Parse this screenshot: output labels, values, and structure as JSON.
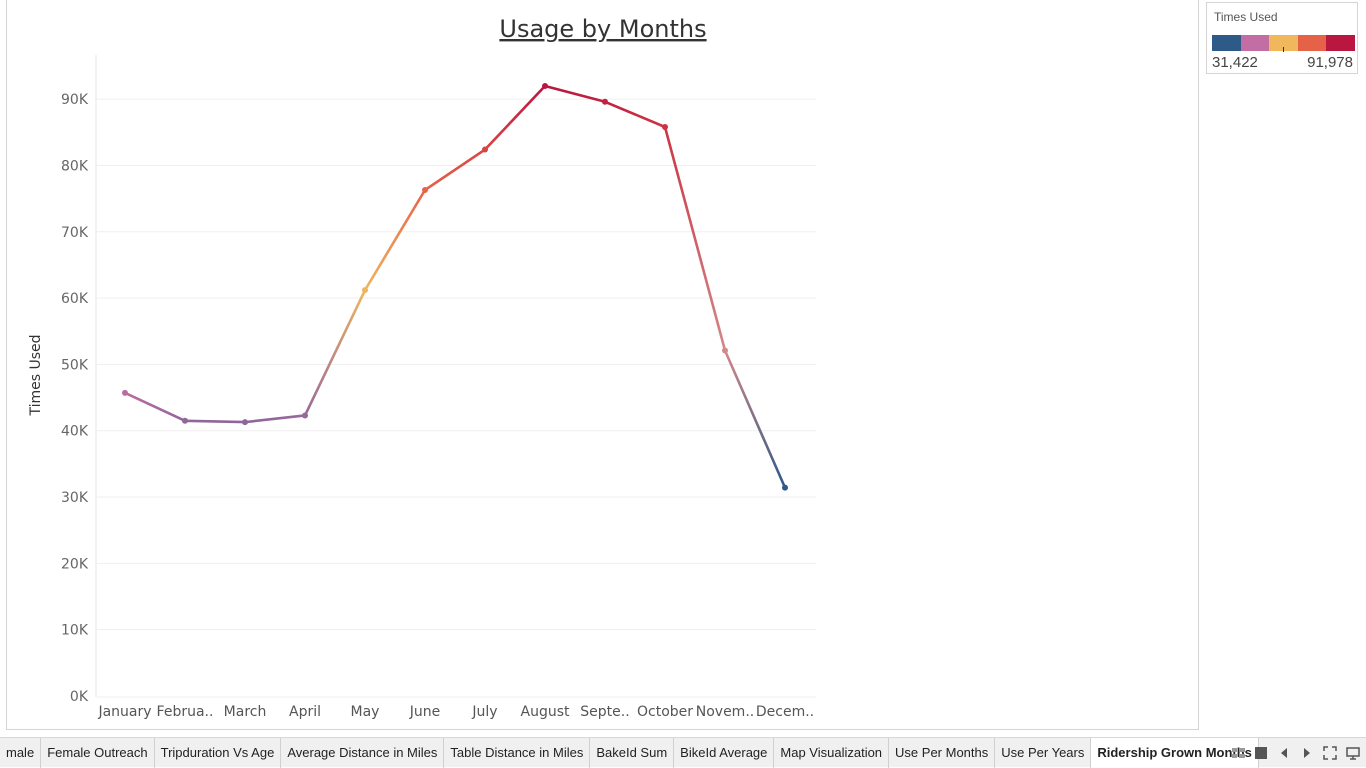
{
  "chart_data": {
    "type": "line",
    "title": "Usage by Months",
    "ylabel": "Times Used",
    "xlabel": "",
    "categories": [
      "January",
      "Februa..",
      "March",
      "April",
      "May",
      "June",
      "July",
      "August",
      "Septe..",
      "October",
      "Novem..",
      "Decem.."
    ],
    "series": [
      {
        "values": [
          45700,
          41500,
          41300,
          42300,
          61200,
          76300,
          82400,
          91978,
          89600,
          85800,
          52100,
          31422
        ]
      }
    ],
    "ylim": [
      0,
      96000
    ],
    "yticks": [
      0,
      10000,
      20000,
      30000,
      40000,
      50000,
      60000,
      70000,
      80000,
      90000
    ],
    "ytick_labels": [
      "0K",
      "10K",
      "20K",
      "30K",
      "40K",
      "50K",
      "60K",
      "70K",
      "80K",
      "90K"
    ],
    "grid": "horizontal",
    "color_legend": {
      "title": "Times Used",
      "min": 31422,
      "max": 91978,
      "min_label": "31,422",
      "max_label": "91,978",
      "colors": [
        "#2e5a87",
        "#c26da3",
        "#f1b75c",
        "#e56148",
        "#b9173f"
      ]
    }
  },
  "tabs": {
    "items": [
      "male",
      "Female Outreach",
      "Tripduration Vs Age",
      "Average Distance in Miles",
      "Table Distance in Miles",
      "BakeId Sum",
      "BikeId Average",
      "Map Visualization",
      "Use Per Months",
      "Use Per Years",
      "Ridership Grown Months"
    ],
    "active_index": 10
  },
  "controls": {
    "icons": [
      "sheet-sorter-icon",
      "filmstrip-icon",
      "previous-sheet-icon",
      "next-sheet-icon",
      "fullscreen-icon",
      "presentation-icon"
    ]
  }
}
